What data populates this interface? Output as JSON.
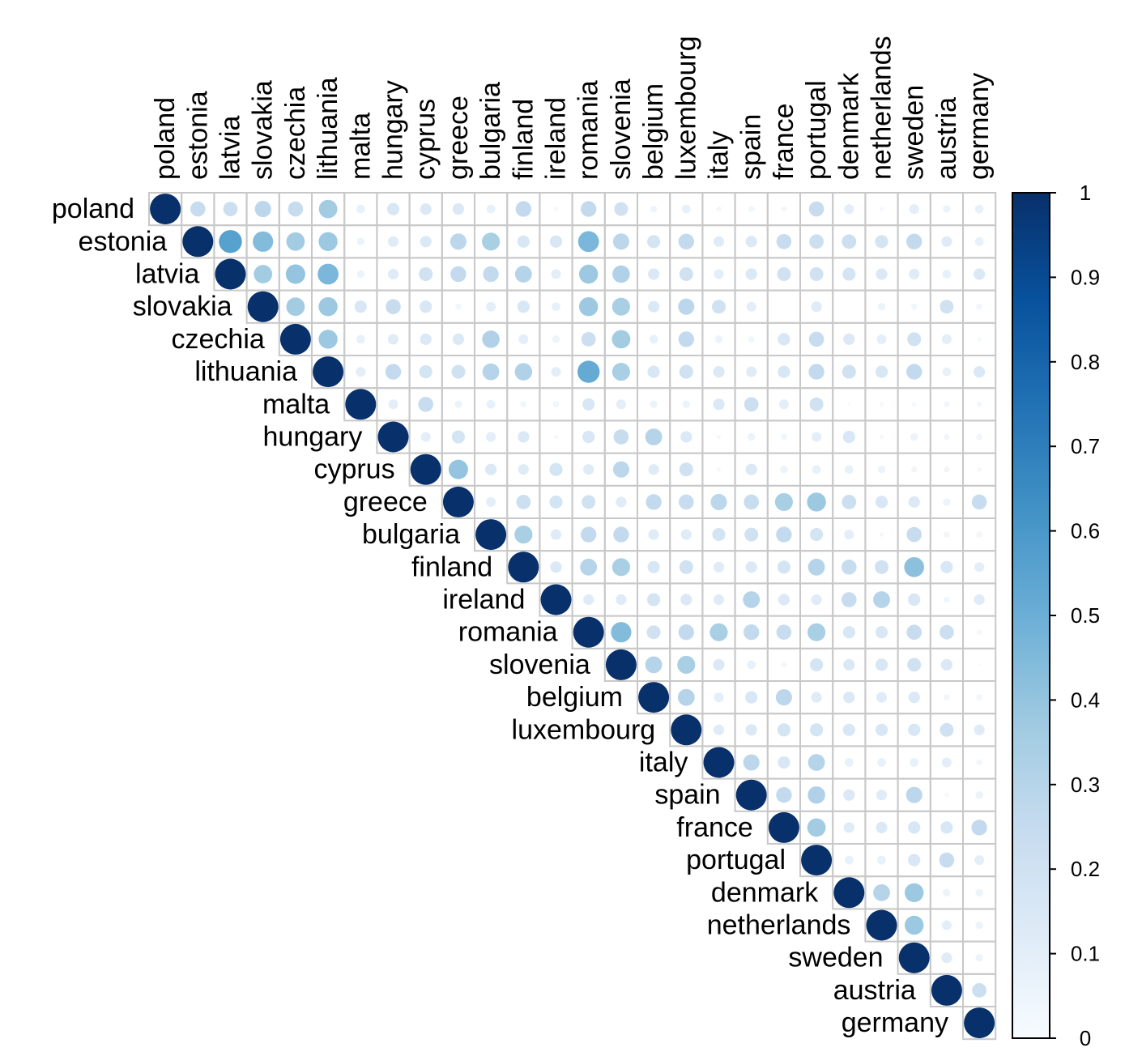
{
  "chart_data": {
    "type": "heatmap",
    "style": "correlation-circles-upper-triangle",
    "variables": [
      "poland",
      "estonia",
      "latvia",
      "slovakia",
      "czechia",
      "lithuania",
      "malta",
      "hungary",
      "cyprus",
      "greece",
      "bulgaria",
      "finland",
      "ireland",
      "romania",
      "slovenia",
      "belgium",
      "luxembourg",
      "italy",
      "spain",
      "france",
      "portugal",
      "denmark",
      "netherlands",
      "sweden",
      "austria",
      "germany"
    ],
    "matrix": [
      [
        1,
        0.24,
        0.22,
        0.28,
        0.24,
        0.36,
        0.08,
        0.16,
        0.14,
        0.14,
        0.08,
        0.26,
        0.02,
        0.26,
        0.2,
        0.05,
        0.08,
        0.03,
        0.04,
        0.03,
        0.24,
        0.1,
        0.02,
        0.1,
        0.06,
        0.08
      ],
      [
        null,
        1,
        0.56,
        0.44,
        0.36,
        0.38,
        0.06,
        0.12,
        0.14,
        0.28,
        0.34,
        0.16,
        0.16,
        0.46,
        0.28,
        0.18,
        0.26,
        0.12,
        0.14,
        0.24,
        0.22,
        0.22,
        0.18,
        0.26,
        0.12,
        0.08
      ],
      [
        null,
        null,
        1,
        0.36,
        0.4,
        0.46,
        0.06,
        0.12,
        0.2,
        0.26,
        0.26,
        0.3,
        0.1,
        0.38,
        0.32,
        0.14,
        0.2,
        0.1,
        0.14,
        0.2,
        0.2,
        0.18,
        0.14,
        0.12,
        0.08,
        0.14
      ],
      [
        null,
        null,
        null,
        1,
        0.36,
        0.38,
        0.16,
        0.24,
        0.16,
        0.04,
        0.1,
        0.16,
        0.08,
        0.38,
        0.34,
        0.14,
        0.28,
        0.2,
        0.1,
        0.0,
        0.12,
        0.0,
        0.06,
        0.04,
        0.2,
        0.04
      ],
      [
        null,
        null,
        null,
        null,
        1,
        0.38,
        0.08,
        0.12,
        0.14,
        0.14,
        0.32,
        0.1,
        0.06,
        0.22,
        0.36,
        0.08,
        0.26,
        0.06,
        0.04,
        0.16,
        0.24,
        0.14,
        0.1,
        0.2,
        0.1,
        0.02
      ],
      [
        null,
        null,
        null,
        null,
        null,
        1,
        0.1,
        0.26,
        0.18,
        0.2,
        0.3,
        0.32,
        0.1,
        0.52,
        0.34,
        0.16,
        0.2,
        0.14,
        0.12,
        0.16,
        0.26,
        0.2,
        0.16,
        0.26,
        0.08,
        0.14
      ],
      [
        null,
        null,
        null,
        null,
        null,
        null,
        1,
        0.1,
        0.24,
        0.06,
        0.08,
        0.04,
        0.04,
        0.16,
        0.1,
        0.06,
        0.06,
        0.14,
        0.22,
        0.1,
        0.2,
        0.01,
        0.02,
        0.02,
        0.04,
        0.03
      ],
      [
        null,
        null,
        null,
        null,
        null,
        null,
        null,
        1,
        0.1,
        0.18,
        0.1,
        0.14,
        0.02,
        0.16,
        0.24,
        0.3,
        0.14,
        0.02,
        0.06,
        0.04,
        0.1,
        0.16,
        0.02,
        0.06,
        0.04,
        0.04
      ],
      [
        null,
        null,
        null,
        null,
        null,
        null,
        null,
        null,
        1,
        0.4,
        0.14,
        0.12,
        0.18,
        0.12,
        0.28,
        0.12,
        0.2,
        0.02,
        0.14,
        0.06,
        0.08,
        0.08,
        0.06,
        0.04,
        0.04,
        0.02
      ],
      [
        null,
        null,
        null,
        null,
        null,
        null,
        null,
        null,
        null,
        1,
        0.1,
        0.22,
        0.18,
        0.2,
        0.12,
        0.26,
        0.24,
        0.28,
        0.24,
        0.34,
        0.38,
        0.22,
        0.16,
        0.14,
        0.06,
        0.24
      ],
      [
        null,
        null,
        null,
        null,
        null,
        null,
        null,
        null,
        null,
        null,
        1,
        0.34,
        0.12,
        0.26,
        0.26,
        0.12,
        0.12,
        0.18,
        0.2,
        0.26,
        0.18,
        0.1,
        0.02,
        0.24,
        0.04,
        0.04
      ],
      [
        null,
        null,
        null,
        null,
        null,
        null,
        null,
        null,
        null,
        null,
        null,
        1,
        0.14,
        0.3,
        0.34,
        0.16,
        0.2,
        0.12,
        0.14,
        0.18,
        0.3,
        0.24,
        0.2,
        0.42,
        0.16,
        0.1
      ],
      [
        null,
        null,
        null,
        null,
        null,
        null,
        null,
        null,
        null,
        null,
        null,
        null,
        1,
        0.12,
        0.12,
        0.18,
        0.14,
        0.12,
        0.3,
        0.14,
        0.12,
        0.24,
        0.3,
        0.16,
        0.04,
        0.12
      ],
      [
        null,
        null,
        null,
        null,
        null,
        null,
        null,
        null,
        null,
        null,
        null,
        null,
        null,
        1,
        0.44,
        0.2,
        0.26,
        0.34,
        0.26,
        0.24,
        0.34,
        0.16,
        0.16,
        0.24,
        0.22,
        0.03
      ],
      [
        null,
        null,
        null,
        null,
        null,
        null,
        null,
        null,
        null,
        null,
        null,
        null,
        null,
        null,
        1,
        0.3,
        0.34,
        0.14,
        0.08,
        0.03,
        0.18,
        0.14,
        0.16,
        0.2,
        0.14,
        0.01
      ],
      [
        null,
        null,
        null,
        null,
        null,
        null,
        null,
        null,
        null,
        null,
        null,
        null,
        null,
        null,
        null,
        1,
        0.3,
        0.1,
        0.16,
        0.28,
        0.12,
        0.14,
        0.12,
        0.14,
        0.04,
        0.04
      ],
      [
        null,
        null,
        null,
        null,
        null,
        null,
        null,
        null,
        null,
        null,
        null,
        null,
        null,
        null,
        null,
        null,
        1,
        0.12,
        0.14,
        0.18,
        0.18,
        0.16,
        0.16,
        0.16,
        0.2,
        0.12
      ],
      [
        null,
        null,
        null,
        null,
        null,
        null,
        null,
        null,
        null,
        null,
        null,
        null,
        null,
        null,
        null,
        null,
        null,
        1,
        0.28,
        0.16,
        0.3,
        0.08,
        0.08,
        0.08,
        0.1,
        0.04
      ],
      [
        null,
        null,
        null,
        null,
        null,
        null,
        null,
        null,
        null,
        null,
        null,
        null,
        null,
        null,
        null,
        null,
        null,
        null,
        1,
        0.26,
        0.32,
        0.14,
        0.12,
        0.28,
        0.02,
        0.06
      ],
      [
        null,
        null,
        null,
        null,
        null,
        null,
        null,
        null,
        null,
        null,
        null,
        null,
        null,
        null,
        null,
        null,
        null,
        null,
        null,
        1,
        0.36,
        0.12,
        0.14,
        0.16,
        0.16,
        0.26
      ],
      [
        null,
        null,
        null,
        null,
        null,
        null,
        null,
        null,
        null,
        null,
        null,
        null,
        null,
        null,
        null,
        null,
        null,
        null,
        null,
        null,
        1,
        0.08,
        0.08,
        0.16,
        0.24,
        0.1
      ],
      [
        null,
        null,
        null,
        null,
        null,
        null,
        null,
        null,
        null,
        null,
        null,
        null,
        null,
        null,
        null,
        null,
        null,
        null,
        null,
        null,
        null,
        1,
        0.3,
        0.38,
        0.06,
        0.06
      ],
      [
        null,
        null,
        null,
        null,
        null,
        null,
        null,
        null,
        null,
        null,
        null,
        null,
        null,
        null,
        null,
        null,
        null,
        null,
        null,
        null,
        null,
        null,
        1,
        0.38,
        0.1,
        0.06
      ],
      [
        null,
        null,
        null,
        null,
        null,
        null,
        null,
        null,
        null,
        null,
        null,
        null,
        null,
        null,
        null,
        null,
        null,
        null,
        null,
        null,
        null,
        null,
        null,
        1,
        0.12,
        0.06
      ],
      [
        null,
        null,
        null,
        null,
        null,
        null,
        null,
        null,
        null,
        null,
        null,
        null,
        null,
        null,
        null,
        null,
        null,
        null,
        null,
        null,
        null,
        null,
        null,
        null,
        1,
        0.22
      ],
      [
        null,
        null,
        null,
        null,
        null,
        null,
        null,
        null,
        null,
        null,
        null,
        null,
        null,
        null,
        null,
        null,
        null,
        null,
        null,
        null,
        null,
        null,
        null,
        null,
        null,
        1
      ]
    ],
    "colorbar": {
      "ticks": [
        "1",
        "0.9",
        "0.8",
        "0.7",
        "0.6",
        "0.5",
        "0.4",
        "0.3",
        "0.2",
        "0.1",
        "0"
      ],
      "tick_values": [
        1,
        0.9,
        0.8,
        0.7,
        0.6,
        0.5,
        0.4,
        0.3,
        0.2,
        0.1,
        0
      ],
      "range": [
        0,
        1
      ]
    },
    "color_scale": [
      "#f7fbff",
      "#deebf7",
      "#c6dbef",
      "#9ecae1",
      "#6baed6",
      "#4292c6",
      "#2171b5",
      "#08519c",
      "#08306b"
    ],
    "grid_color": "#c8c8c8",
    "grid": true,
    "legend": "right"
  }
}
